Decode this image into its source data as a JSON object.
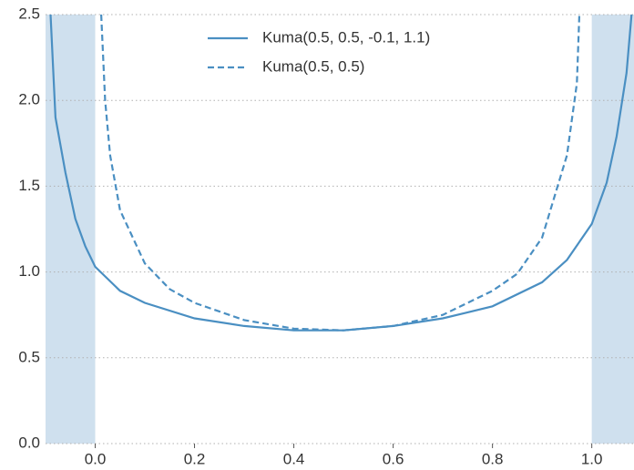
{
  "chart_data": {
    "type": "line",
    "xlim": [
      -0.1,
      1.085
    ],
    "ylim": [
      0,
      2.5
    ],
    "xticks": [
      {
        "value": 0,
        "label": "0.0"
      },
      0.2,
      0.4,
      0.6,
      0.8,
      {
        "value": 1,
        "label": "1.0"
      }
    ],
    "yticks": [
      {
        "value": 0,
        "label": "0.0"
      },
      0.5,
      {
        "value": 1,
        "label": "1.0"
      },
      1.5,
      {
        "value": 2,
        "label": "2.0"
      },
      2.5
    ],
    "grid": true,
    "legend": "upper center",
    "shaded_regions": [
      [
        -0.1,
        0
      ],
      [
        1,
        1.1
      ]
    ],
    "shade_color": "#cfe0ee",
    "series": [
      {
        "name": "Kuma(0.5, 0.5, -0.1, 1.1)",
        "color": "#4a8fc2",
        "dash": false,
        "x": [
          -0.09,
          -0.08,
          -0.06,
          -0.04,
          -0.02,
          0,
          0.05,
          0.1,
          0.2,
          0.3,
          0.4,
          0.5,
          0.6,
          0.7,
          0.8,
          0.9,
          0.95,
          1.0,
          1.03,
          1.05,
          1.07,
          1.08
        ],
        "values": [
          2.5,
          1.9,
          1.58,
          1.31,
          1.15,
          1.03,
          0.89,
          0.82,
          0.73,
          0.685,
          0.66,
          0.66,
          0.685,
          0.73,
          0.8,
          0.94,
          1.07,
          1.28,
          1.52,
          1.79,
          2.16,
          2.5
        ]
      },
      {
        "name": "Kuma(0.5, 0.5)",
        "color": "#4a8fc2",
        "dash": true,
        "x": [
          0.012,
          0.02,
          0.03,
          0.05,
          0.1,
          0.15,
          0.2,
          0.3,
          0.4,
          0.5,
          0.6,
          0.7,
          0.8,
          0.85,
          0.9,
          0.95,
          0.97,
          0.975
        ],
        "values": [
          2.5,
          2.0,
          1.68,
          1.36,
          1.05,
          0.9,
          0.82,
          0.72,
          0.67,
          0.66,
          0.685,
          0.75,
          0.89,
          0.99,
          1.2,
          1.68,
          2.1,
          2.5
        ]
      }
    ]
  }
}
